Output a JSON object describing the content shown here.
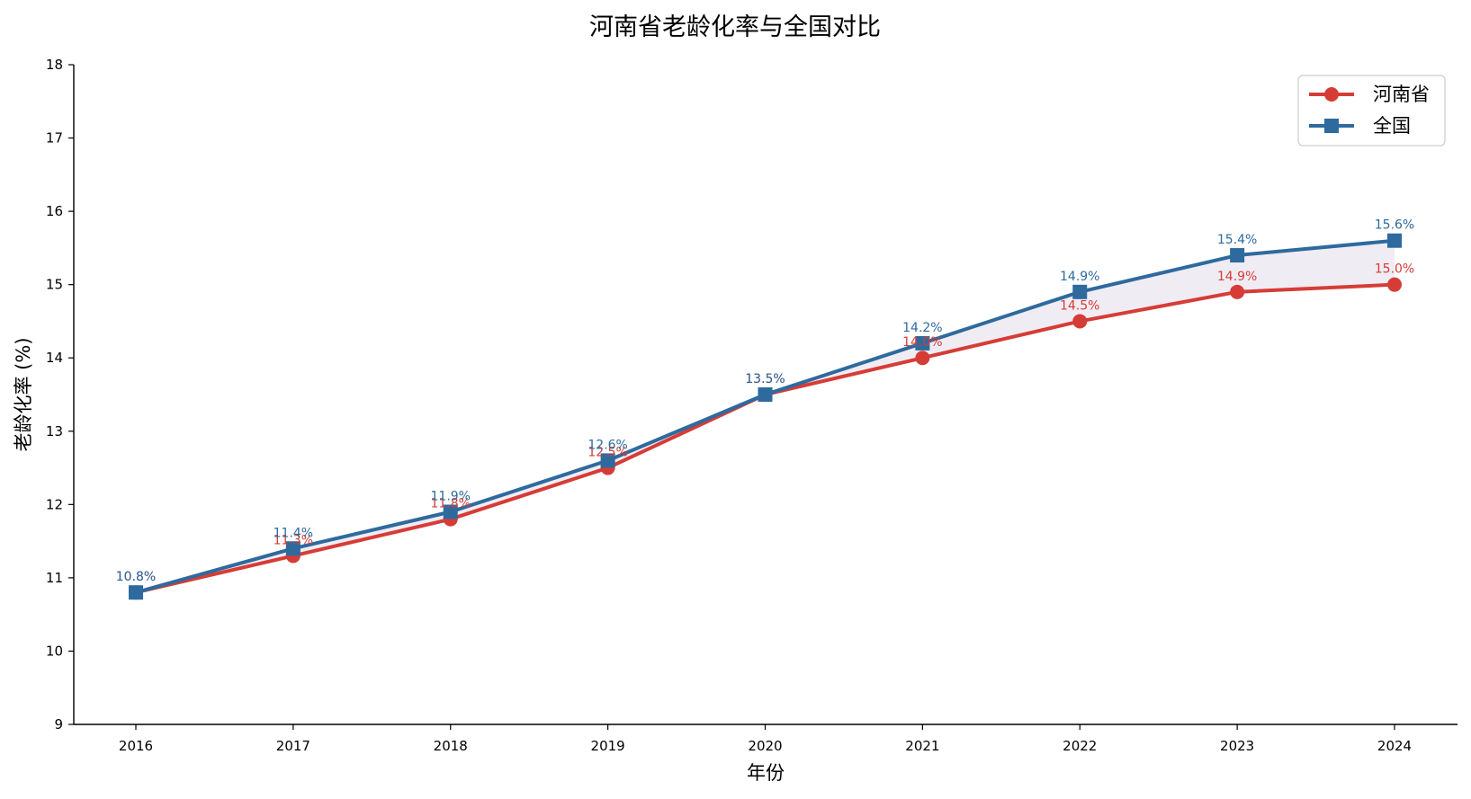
{
  "chart_data": {
    "type": "line",
    "title": "河南省老龄化率与全国对比",
    "xlabel": "年份",
    "ylabel": "老龄化率 (%)",
    "x": [
      2016,
      2017,
      2018,
      2019,
      2020,
      2021,
      2022,
      2023,
      2024
    ],
    "ylim": [
      9,
      18
    ],
    "yticks": [
      9,
      10,
      11,
      12,
      13,
      14,
      15,
      16,
      17,
      18
    ],
    "grid": false,
    "legend_position": "top-right",
    "gap_fill_color": "#eeeaf3",
    "series": [
      {
        "name": "河南省",
        "color": "#d63c36",
        "marker": "circle",
        "values": [
          10.8,
          11.3,
          11.8,
          12.5,
          13.5,
          14.0,
          14.5,
          14.9,
          15.0
        ],
        "labels": [
          "10.8%",
          "11.3%",
          "11.8%",
          "12.5%",
          "13.5%",
          "14.0%",
          "14.5%",
          "14.9%",
          "15.0%"
        ]
      },
      {
        "name": "全国",
        "color": "#2e6a9e",
        "marker": "square",
        "values": [
          10.8,
          11.4,
          11.9,
          12.6,
          13.5,
          14.2,
          14.9,
          15.4,
          15.6
        ],
        "labels": [
          "10.8%",
          "11.4%",
          "11.9%",
          "12.6%",
          "13.5%",
          "14.2%",
          "14.9%",
          "15.4%",
          "15.6%"
        ]
      }
    ]
  }
}
